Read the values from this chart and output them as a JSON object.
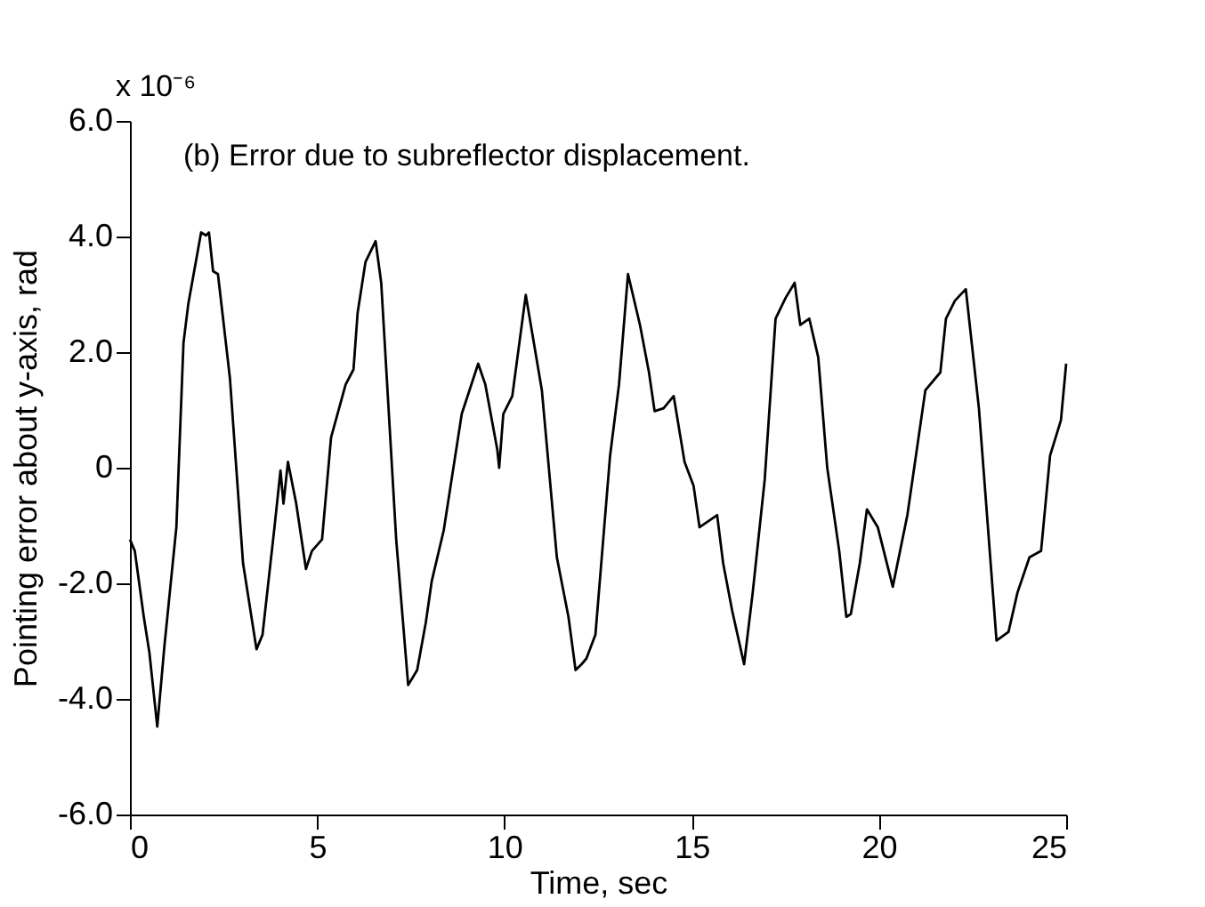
{
  "chart_data": {
    "type": "line",
    "title": "(b) Error due to subreflector displacement.",
    "xlabel": "Time, sec",
    "ylabel": "Pointing error about y-axis, rad",
    "annotations": [
      "x 10⁻⁶"
    ],
    "xlim": [
      0,
      25
    ],
    "xticks": [
      0,
      5,
      10,
      15,
      20,
      25
    ],
    "ylim": [
      -6,
      6
    ],
    "yticks": [
      {
        "value": -6,
        "label": "-6.0"
      },
      {
        "value": -4,
        "label": "-4.0"
      },
      {
        "value": -2,
        "label": "-2.0"
      },
      0,
      {
        "value": 2,
        "label": "2.0"
      },
      {
        "value": 4,
        "label": "4.0"
      },
      {
        "value": 6,
        "label": "6.0"
      }
    ],
    "grid": false,
    "marker": "none",
    "line_style": "solid",
    "x": [
      0,
      0.13,
      0.37,
      0.52,
      0.73,
      0.92,
      1.24,
      1.43,
      1.56,
      1.9,
      2.03,
      2.11,
      2.22,
      2.35,
      2.67,
      3.02,
      3.38,
      3.54,
      3.86,
      4.02,
      4.1,
      4.22,
      4.44,
      4.7,
      4.86,
      5.13,
      5.37,
      5.76,
      5.97,
      6.08,
      6.29,
      6.56,
      6.71,
      7.11,
      7.43,
      7.67,
      7.9,
      8.06,
      8.38,
      8.86,
      9.3,
      9.49,
      9.81,
      9.86,
      9.97,
      10.21,
      10.57,
      11.0,
      11.4,
      11.71,
      11.9,
      12.06,
      12.19,
      12.43,
      12.82,
      13.06,
      13.3,
      13.62,
      13.86,
      14.01,
      14.25,
      14.52,
      14.81,
      15.05,
      15.21,
      15.68,
      15.84,
      16.08,
      16.4,
      16.63,
      16.95,
      17.24,
      17.51,
      17.75,
      17.9,
      18.14,
      18.38,
      18.62,
      18.94,
      19.13,
      19.25,
      19.49,
      19.68,
      19.97,
      20.37,
      20.76,
      21.24,
      21.64,
      21.79,
      22.03,
      22.32,
      22.67,
      23.14,
      23.46,
      23.7,
      24.02,
      24.33,
      24.57,
      24.86,
      25
    ],
    "series": [
      {
        "color": "#000000",
        "values": [
          -1.24,
          -1.44,
          -2.58,
          -3.2,
          -4.48,
          -3.09,
          -1.03,
          2.16,
          2.84,
          4.07,
          4.02,
          4.07,
          3.4,
          3.35,
          1.55,
          -1.65,
          -3.14,
          -2.89,
          -1.03,
          -0.05,
          -0.62,
          0.1,
          -0.62,
          -1.75,
          -1.44,
          -1.24,
          0.52,
          1.44,
          1.7,
          2.68,
          3.56,
          3.92,
          3.2,
          -1.24,
          -3.76,
          -3.5,
          -2.68,
          -1.96,
          -1.08,
          0.93,
          1.8,
          1.44,
          0.31,
          0,
          0.93,
          1.24,
          2.99,
          1.34,
          -1.55,
          -2.58,
          -3.5,
          -3.4,
          -3.3,
          -2.89,
          0.2,
          1.44,
          3.35,
          2.47,
          1.65,
          0.98,
          1.03,
          1.24,
          0.1,
          -0.31,
          -1.03,
          -0.82,
          -1.65,
          -2.47,
          -3.4,
          -2.16,
          -0.21,
          2.58,
          2.94,
          3.2,
          2.47,
          2.58,
          1.91,
          0,
          -1.44,
          -2.58,
          -2.53,
          -1.65,
          -0.72,
          -1.03,
          -2.06,
          -0.82,
          1.34,
          1.65,
          2.58,
          2.89,
          3.09,
          1.03,
          -2.99,
          -2.84,
          -2.16,
          -1.55,
          -1.44,
          0.21,
          0.82,
          1.8
        ]
      }
    ]
  }
}
